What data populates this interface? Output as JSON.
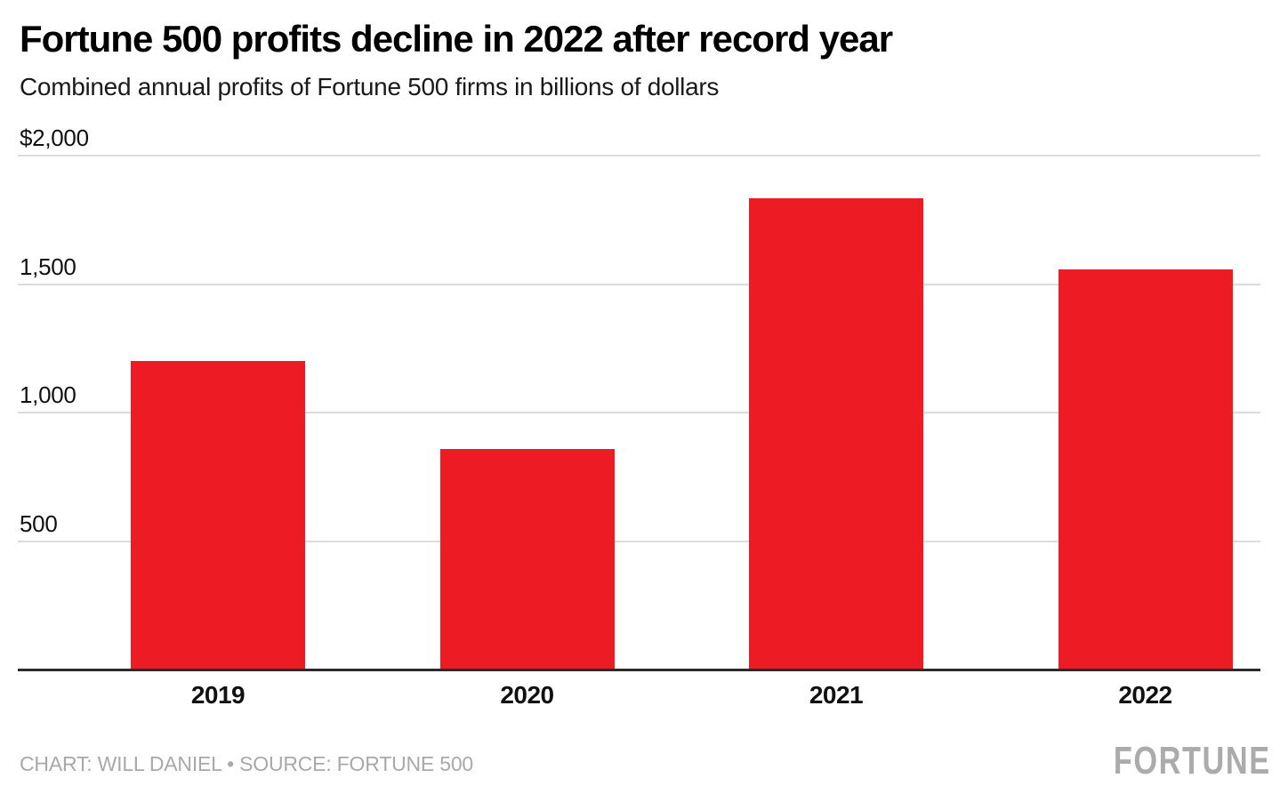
{
  "header": {
    "title": "Fortune 500 profits decline in 2022 after record year",
    "subtitle": "Combined annual profits of Fortune 500 firms in billions of dollars"
  },
  "chart_data": {
    "type": "bar",
    "title": "Fortune 500 profits decline in 2022 after record year",
    "subtitle": "Combined annual profits of Fortune 500 firms in billions of dollars",
    "categories": [
      "2019",
      "2020",
      "2021",
      "2022"
    ],
    "values": [
      1200,
      857,
      1833,
      1558
    ],
    "xlabel": "",
    "ylabel": "Combined annual profits, billions of dollars",
    "ylim": [
      0,
      2000
    ],
    "yticks": [
      {
        "label": "$2,000",
        "value": 2000
      },
      {
        "label": "1,500",
        "value": 1500
      },
      {
        "label": "1,000",
        "value": 1000
      },
      {
        "label": "500",
        "value": 500
      }
    ],
    "grid": "horizontal",
    "legend": "none",
    "bar_color": "#ed1c24"
  },
  "colors": {
    "bar_red": "#ed1c24",
    "gridline": "#dcdcdc",
    "axis": "#2b2b2b",
    "text_dark": "#111111",
    "muted_gray": "#a9a9a9",
    "logo_gray": "#ababab"
  },
  "footer": {
    "credit": "CHART: WILL DANIEL • SOURCE: FORTUNE 500",
    "logo": "FORTUNE"
  }
}
